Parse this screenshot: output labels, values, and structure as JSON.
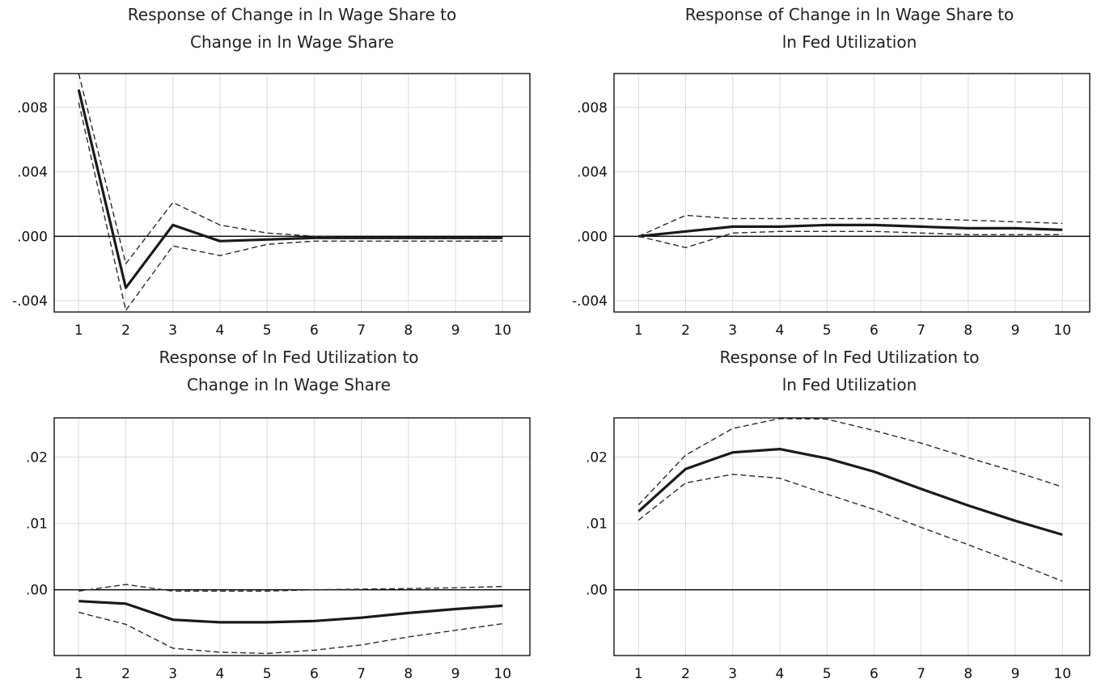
{
  "chart_data": [
    {
      "type": "line",
      "title_lines": [
        "Response of Change in ln Wage Share to",
        "Change in ln Wage Share"
      ],
      "x": [
        1,
        2,
        3,
        4,
        5,
        6,
        7,
        8,
        9,
        10
      ],
      "xtick_labels": [
        "1",
        "2",
        "3",
        "4",
        "5",
        "6",
        "7",
        "8",
        "9",
        "10"
      ],
      "ylim": [
        -0.0047,
        0.0101
      ],
      "yticks": [
        0.008,
        0.004,
        0.0,
        -0.004
      ],
      "ytick_labels": [
        ".008",
        ".004",
        ".000",
        "-.004"
      ],
      "grid": true,
      "series": [
        {
          "role": "response",
          "values": [
            0.0091,
            -0.0032,
            0.0007,
            -0.0003,
            -0.0002,
            -0.0001,
            -0.0001,
            -0.0001,
            -0.0001,
            -0.0001
          ]
        },
        {
          "role": "upper band",
          "values": [
            0.0101,
            -0.0017,
            0.0021,
            0.0007,
            0.0002,
            0.0,
            -0.0001,
            -0.0001,
            -0.0001,
            -0.0001
          ]
        },
        {
          "role": "lower band",
          "values": [
            0.0083,
            -0.0046,
            -0.0006,
            -0.0012,
            -0.0005,
            -0.0003,
            -0.0003,
            -0.0003,
            -0.0003,
            -0.0003
          ]
        }
      ]
    },
    {
      "type": "line",
      "title_lines": [
        "Response of Change in ln Wage Share to",
        "ln Fed Utilization"
      ],
      "x": [
        1,
        2,
        3,
        4,
        5,
        6,
        7,
        8,
        9,
        10
      ],
      "xtick_labels": [
        "1",
        "2",
        "3",
        "4",
        "5",
        "6",
        "7",
        "8",
        "9",
        "10"
      ],
      "ylim": [
        -0.0047,
        0.0101
      ],
      "yticks": [
        0.008,
        0.004,
        0.0,
        -0.004
      ],
      "ytick_labels": [
        ".008",
        ".004",
        ".000",
        "-.004"
      ],
      "grid": true,
      "series": [
        {
          "role": "response",
          "values": [
            0.0,
            0.0003,
            0.0006,
            0.0006,
            0.0007,
            0.0007,
            0.0006,
            0.0005,
            0.0005,
            0.0004
          ]
        },
        {
          "role": "upper band",
          "values": [
            0.0,
            0.0013,
            0.0011,
            0.0011,
            0.0011,
            0.0011,
            0.0011,
            0.001,
            0.0009,
            0.0008
          ]
        },
        {
          "role": "lower band",
          "values": [
            0.0,
            -0.0007,
            0.0002,
            0.0003,
            0.0003,
            0.0003,
            0.0002,
            0.0001,
            0.0001,
            0.0001
          ]
        }
      ]
    },
    {
      "type": "line",
      "title_lines": [
        "Response of ln Fed Utilization to",
        "Change in ln Wage Share"
      ],
      "x": [
        1,
        2,
        3,
        4,
        5,
        6,
        7,
        8,
        9,
        10
      ],
      "xtick_labels": [
        "1",
        "2",
        "3",
        "4",
        "5",
        "6",
        "7",
        "8",
        "9",
        "10"
      ],
      "ylim": [
        -0.0099,
        0.0259
      ],
      "yticks": [
        0.02,
        0.01,
        0.0
      ],
      "ytick_labels": [
        ".02",
        ".01",
        ".00"
      ],
      "grid": true,
      "series": [
        {
          "role": "response",
          "values": [
            -0.0017,
            -0.0021,
            -0.0045,
            -0.0049,
            -0.0049,
            -0.0047,
            -0.0042,
            -0.0035,
            -0.0029,
            -0.0024
          ]
        },
        {
          "role": "upper band",
          "values": [
            -0.0002,
            0.0008,
            -0.0002,
            -0.0002,
            -0.0002,
            0.0,
            0.0001,
            0.0002,
            0.0003,
            0.0005
          ]
        },
        {
          "role": "lower band",
          "values": [
            -0.0034,
            -0.0052,
            -0.0088,
            -0.0094,
            -0.0096,
            -0.0091,
            -0.0083,
            -0.0071,
            -0.0061,
            -0.0051
          ]
        }
      ]
    },
    {
      "type": "line",
      "title_lines": [
        "Response of ln Fed Utilization to",
        "ln Fed Utilization"
      ],
      "x": [
        1,
        2,
        3,
        4,
        5,
        6,
        7,
        8,
        9,
        10
      ],
      "xtick_labels": [
        "1",
        "2",
        "3",
        "4",
        "5",
        "6",
        "7",
        "8",
        "9",
        "10"
      ],
      "ylim": [
        -0.0099,
        0.0259
      ],
      "yticks": [
        0.02,
        0.01,
        0.0
      ],
      "ytick_labels": [
        ".02",
        ".01",
        ".00"
      ],
      "grid": true,
      "series": [
        {
          "role": "response",
          "values": [
            0.0118,
            0.0182,
            0.0207,
            0.0212,
            0.0198,
            0.0178,
            0.0152,
            0.0127,
            0.0104,
            0.0083
          ]
        },
        {
          "role": "upper band",
          "values": [
            0.0128,
            0.0203,
            0.0243,
            0.0258,
            0.0257,
            0.024,
            0.0221,
            0.0199,
            0.0178,
            0.0155
          ]
        },
        {
          "role": "lower band",
          "values": [
            0.0105,
            0.0161,
            0.0174,
            0.0168,
            0.0144,
            0.0121,
            0.0094,
            0.0068,
            0.0041,
            0.0013
          ]
        }
      ]
    }
  ]
}
